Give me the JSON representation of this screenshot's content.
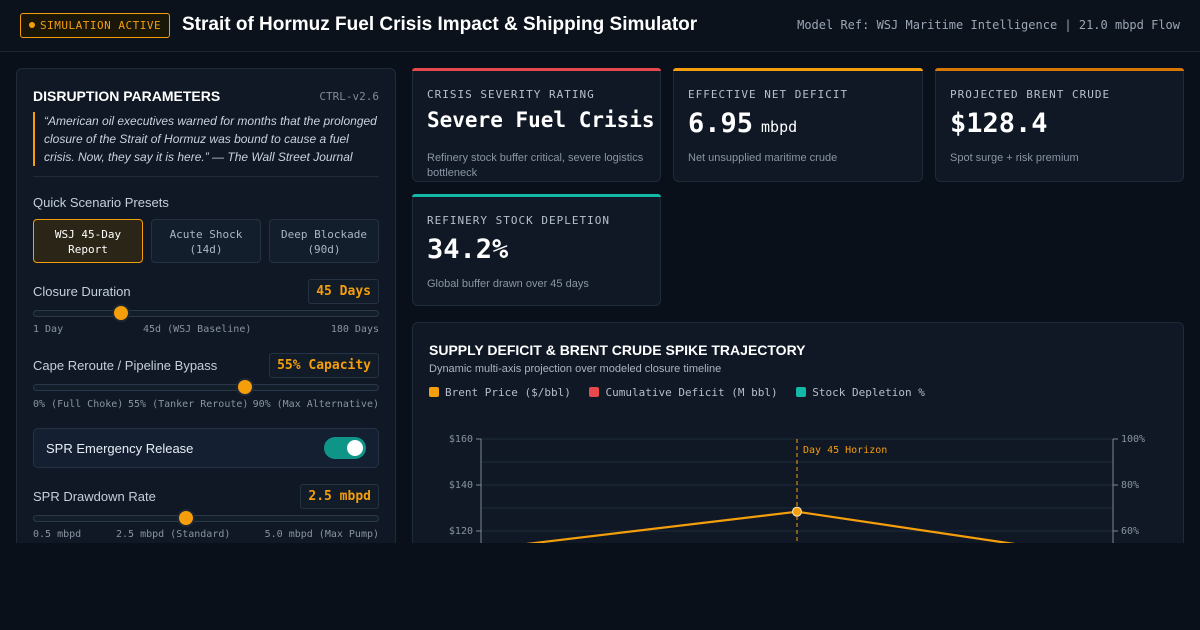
{
  "header": {
    "badge": "SIMULATION ACTIVE",
    "title": "Strait of Hormuz Fuel Crisis Impact & Shipping Simulator",
    "model_ref": "Model Ref: WSJ Maritime Intelligence | 21.0 mbpd Flow"
  },
  "panel": {
    "title": "DISRUPTION PARAMETERS",
    "code": "CTRL-v2.6",
    "quote": "“American oil executives warned for months that the prolonged closure of the Strait of Hormuz was bound to cause a fuel crisis. Now, they say it is here.” — The Wall Street Journal",
    "presets_label": "Quick Scenario Presets",
    "presets": [
      {
        "line1": "WSJ 45-Day",
        "line2": "Report",
        "active": true
      },
      {
        "line1": "Acute Shock",
        "line2": "(14d)",
        "active": false
      },
      {
        "line1": "Deep Blockade",
        "line2": "(90d)",
        "active": false
      }
    ],
    "closure": {
      "label": "Closure Duration",
      "value_text": "45 Days",
      "fraction": 0.25,
      "tick_min": "1 Day",
      "tick_mid": "45d (WSJ Baseline)",
      "tick_max": "180 Days"
    },
    "reroute": {
      "label": "Cape Reroute / Pipeline Bypass",
      "value_text": "55% Capacity",
      "fraction": 0.61,
      "tick_min": "0% (Full Choke)",
      "tick_mid": "55% (Tanker Reroute)",
      "tick_max": "90% (Max Alternative)"
    },
    "spr_toggle": {
      "label": "SPR Emergency Release",
      "on": true
    },
    "spr_rate": {
      "label": "SPR Drawdown Rate",
      "value_text": "2.5 mbpd",
      "fraction": 0.44,
      "tick_min": "0.5 mbpd",
      "tick_mid": "2.5 mbpd (Standard)",
      "tick_max": "5.0 mbpd (Max Pump)"
    }
  },
  "cards": [
    {
      "label": "CRISIS SEVERITY RATING",
      "value": "Severe Fuel Crisis",
      "unit": "",
      "desc": "Refinery stock buffer critical, severe logistics bottleneck",
      "accent": "#e5484d"
    },
    {
      "label": "EFFECTIVE NET DEFICIT",
      "value": "6.95",
      "unit": "mbpd",
      "desc": "Net unsupplied maritime crude",
      "accent": "#f59e0b"
    },
    {
      "label": "PROJECTED BRENT CRUDE",
      "value": "$128.4",
      "unit": "",
      "desc": "Spot surge + risk premium",
      "accent": "#d97706"
    },
    {
      "label": "REFINERY STOCK DEPLETION",
      "value": "34.2%",
      "unit": "",
      "desc": "Global buffer drawn over 45 days",
      "accent": "#14b8a6"
    }
  ],
  "chart": {
    "title": "SUPPLY DEFICIT & BRENT CRUDE SPIKE TRAJECTORY",
    "subtitle": "Dynamic multi-axis projection over modeled closure timeline",
    "legend": [
      {
        "name": "Brent Price ($/bbl)",
        "color": "#f59e0b"
      },
      {
        "name": "Cumulative Deficit (M bbl)",
        "color": "#e5484d"
      },
      {
        "name": "Stock Depletion %",
        "color": "#14b8a6"
      }
    ],
    "horizon_label": "Day 45 Horizon"
  },
  "chart_data": {
    "type": "line",
    "title": "SUPPLY DEFICIT & BRENT CRUDE SPIKE TRAJECTORY",
    "x_range": [
      0,
      90
    ],
    "y_left_ticks": [
      "$160",
      "$140",
      "$120"
    ],
    "y_left_ticks_values": [
      160,
      140,
      120
    ],
    "y_right_ticks": [
      "100%",
      "80%",
      "60%"
    ],
    "y_right_ticks_values": [
      100,
      80,
      60
    ],
    "ylim_left": [
      60,
      160
    ],
    "ylim_right": [
      0,
      100
    ],
    "series": [
      {
        "name": "Brent Price ($/bbl)",
        "x": [
          0,
          45,
          90
        ],
        "values": [
          112,
          128.4,
          108
        ]
      }
    ],
    "annotation": {
      "x": 45,
      "label": "Day 45 Horizon"
    },
    "grid": true
  }
}
